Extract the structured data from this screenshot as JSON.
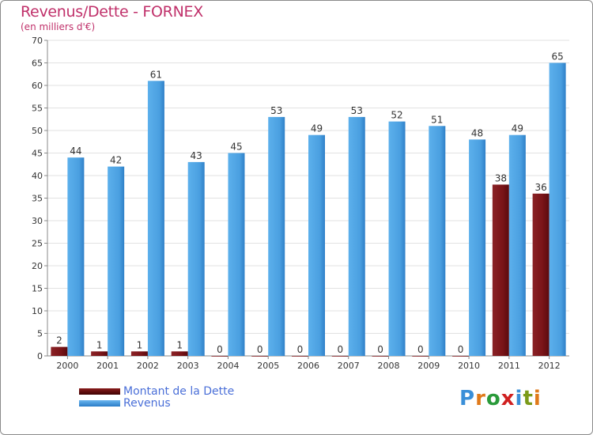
{
  "header": {
    "title": "Revenus/Dette - FORNEX",
    "subtitle": "(en milliers d'€)"
  },
  "legend": {
    "items": [
      {
        "label": "Montant de la Dette",
        "color": "#6b0d0d"
      },
      {
        "label": "Revenus",
        "color": "#4a9fe0"
      }
    ]
  },
  "logo": {
    "letters": [
      "P",
      "r",
      "o",
      "x",
      "i",
      "t",
      "i"
    ],
    "colors": [
      "#3a8fd8",
      "#e07a1a",
      "#2a9a3a",
      "#d02020",
      "#3a8fd8",
      "#7a9a1a",
      "#e07a1a"
    ]
  },
  "chart_data": {
    "type": "bar",
    "title": "Revenus/Dette - FORNEX",
    "ylabel": "(en milliers d'€)",
    "xlabel": "",
    "ylim": [
      0,
      70
    ],
    "ytick_step": 5,
    "grid": true,
    "categories": [
      "2000",
      "2001",
      "2002",
      "2003",
      "2004",
      "2005",
      "2006",
      "2007",
      "2008",
      "2009",
      "2010",
      "2011",
      "2012"
    ],
    "series": [
      {
        "name": "Montant de la Dette",
        "color": "#7a1418",
        "values": [
          2,
          1,
          1,
          1,
          0,
          0,
          0,
          0,
          0,
          0,
          0,
          38,
          36
        ]
      },
      {
        "name": "Revenus",
        "color": "#4a9fe0",
        "values": [
          44,
          42,
          61,
          43,
          45,
          53,
          49,
          53,
          52,
          51,
          48,
          49,
          65
        ]
      }
    ]
  }
}
